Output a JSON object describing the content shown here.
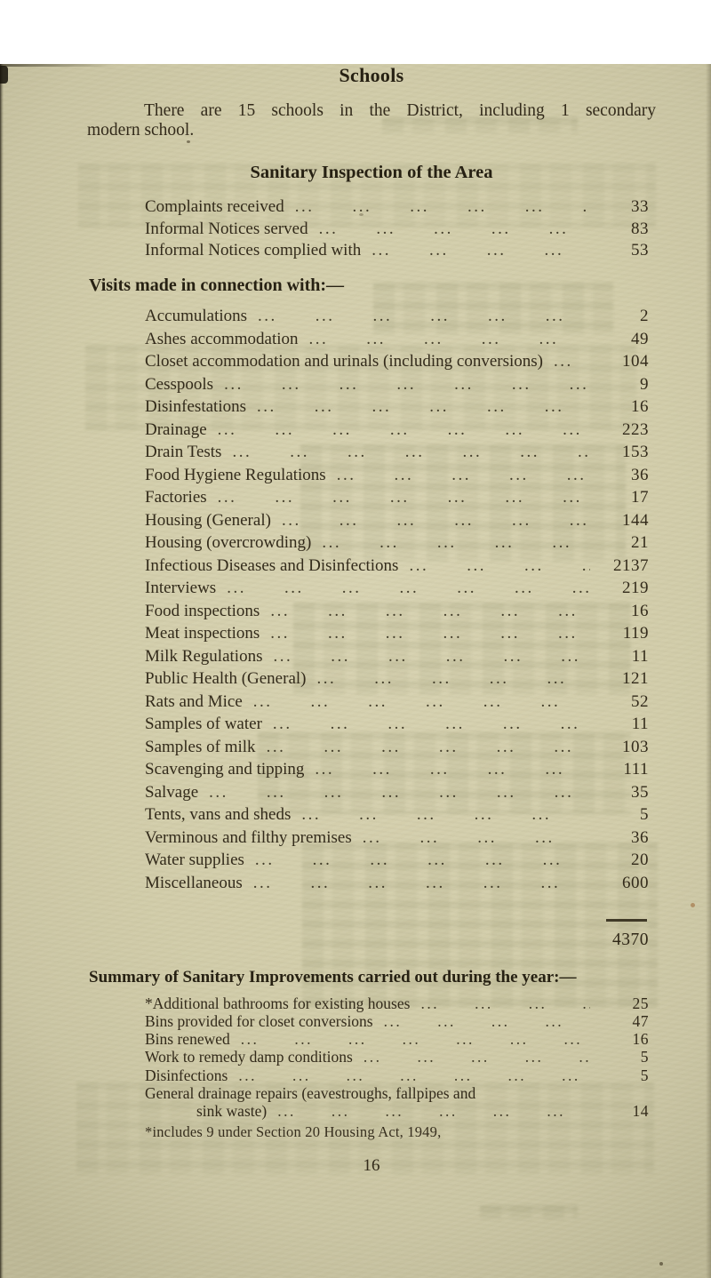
{
  "header": {
    "title": "Schools"
  },
  "intro": {
    "line1": "There are 15 schools in the District, including 1 secondary",
    "line2": "modern school."
  },
  "sanitary": {
    "title": "Sanitary Inspection of the Area",
    "rows": [
      {
        "label": "Complaints received",
        "value": "33"
      },
      {
        "label": "Informal Notices served",
        "value": "83"
      },
      {
        "label": "Informal Notices complied with",
        "value": "53"
      }
    ]
  },
  "visits": {
    "title": "Visits made in connection with:—",
    "rows": [
      {
        "label": "Accumulations",
        "value": "2"
      },
      {
        "label": "Ashes accommodation",
        "value": "49"
      },
      {
        "label": "Closet accommodation and urinals (including conversions)",
        "value": "104"
      },
      {
        "label": "Cesspools",
        "value": "9"
      },
      {
        "label": "Disinfestations",
        "value": "16"
      },
      {
        "label": "Drainage",
        "value": "223"
      },
      {
        "label": "Drain Tests",
        "value": "153"
      },
      {
        "label": "Food Hygiene Regulations",
        "value": "36"
      },
      {
        "label": "Factories",
        "value": "17"
      },
      {
        "label": "Housing (General)",
        "value": "144"
      },
      {
        "label": "Housing (overcrowding)",
        "value": "21"
      },
      {
        "label": "Infectious Diseases and Disinfections",
        "value": "2137"
      },
      {
        "label": "Interviews",
        "value": "219"
      },
      {
        "label": "Food inspections",
        "value": "16"
      },
      {
        "label": "Meat inspections",
        "value": "119"
      },
      {
        "label": "Milk Regulations",
        "value": "11"
      },
      {
        "label": "Public Health (General)",
        "value": "121"
      },
      {
        "label": "Rats and Mice",
        "value": "52"
      },
      {
        "label": "Samples of water",
        "value": "11"
      },
      {
        "label": "Samples of milk",
        "value": "103"
      },
      {
        "label": "Scavenging and tipping",
        "value": "111"
      },
      {
        "label": "Salvage",
        "value": "35"
      },
      {
        "label": "Tents, vans and sheds",
        "value": "5"
      },
      {
        "label": "Verminous and filthy premises",
        "value": "36"
      },
      {
        "label": "Water supplies",
        "value": "20"
      },
      {
        "label": "Miscellaneous",
        "value": "600"
      }
    ],
    "total": "4370"
  },
  "summary": {
    "title": "Summary of Sanitary Improvements carried out during the year:—",
    "rows": [
      {
        "label": "*Additional bathrooms for existing houses",
        "value": "25"
      },
      {
        "label": "Bins provided for closet conversions",
        "value": "47"
      },
      {
        "label": "Bins renewed",
        "value": "16"
      },
      {
        "label": "Work to remedy damp conditions",
        "value": "5"
      },
      {
        "label": "Disinfections",
        "value": "5"
      }
    ],
    "drainage_row": {
      "line1": "General drainage repairs (eavestroughs, fallpipes and",
      "line2": "sink waste)",
      "value": "14"
    },
    "footnote": "*includes 9 under Section 20 Housing Act, 1949,"
  },
  "page_number": "16",
  "colors": {
    "paper": "#d1cca9",
    "ink": "#2e2817"
  }
}
